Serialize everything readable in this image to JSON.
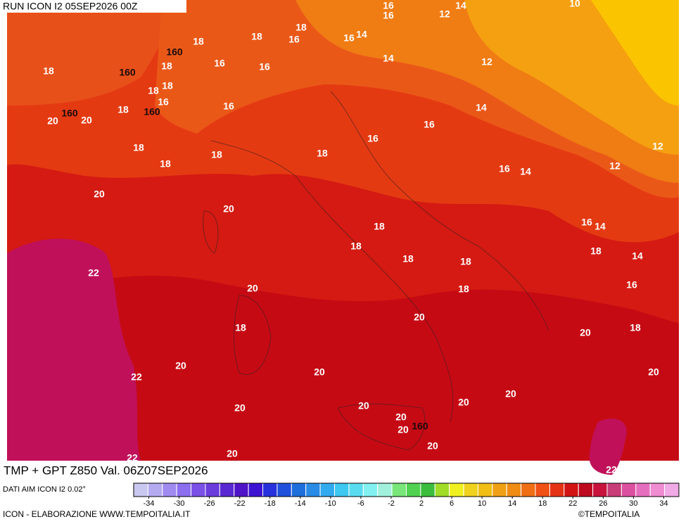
{
  "header": {
    "run": "RUN ICON I2 05SEP2026 00Z"
  },
  "title": "TMP + GPT Z850 Val. 06Z07SEP2026",
  "source": "DATI AIM ICON I2 0.02°",
  "footer": {
    "left": "ICON - ELABORAZIONE WWW.TEMPOITALIA.IT",
    "right": "©TEMPOITALIA"
  },
  "legend": {
    "range": [
      -36,
      36
    ],
    "ticks": [
      -34,
      -30,
      -26,
      -22,
      -18,
      -14,
      -10,
      -6,
      -2,
      2,
      6,
      10,
      14,
      18,
      22,
      26,
      30,
      34
    ],
    "colors": [
      "#c8c8f0",
      "#b4aaf0",
      "#a08cf0",
      "#8c6ef0",
      "#7a50e6",
      "#6a3cdc",
      "#5a28d2",
      "#5014c8",
      "#3c14d2",
      "#2832dc",
      "#1e50dc",
      "#1e6edc",
      "#288ce6",
      "#32aaf0",
      "#3cc8f0",
      "#5adcf0",
      "#82f0f0",
      "#a0f0dc",
      "#78e678",
      "#50d250",
      "#3cbe3c",
      "#a0dc28",
      "#f0f01e",
      "#f0d21e",
      "#f0be14",
      "#f0a014",
      "#f08c14",
      "#f06e14",
      "#f05014",
      "#e63214",
      "#d21414",
      "#be0a1e",
      "#c8143c",
      "#c83c78",
      "#dc50a0",
      "#e66ebe",
      "#f08cd2",
      "#f0aae6"
    ]
  },
  "contour_labels": [
    16,
    14,
    12,
    16,
    10,
    18,
    18,
    18,
    16,
    16,
    14,
    160,
    18,
    16,
    16,
    14,
    12,
    18,
    160,
    18,
    18,
    16,
    18,
    160,
    160,
    20,
    20,
    16,
    14,
    16,
    16,
    12,
    18,
    18,
    18,
    18,
    16,
    14,
    12,
    20,
    20,
    18,
    16,
    14,
    18,
    18,
    18,
    18,
    14,
    22,
    20,
    18,
    16,
    20,
    18,
    20,
    18,
    20,
    22,
    20,
    20,
    20,
    20,
    20,
    20,
    20,
    20,
    160,
    20,
    22,
    20,
    22
  ]
}
